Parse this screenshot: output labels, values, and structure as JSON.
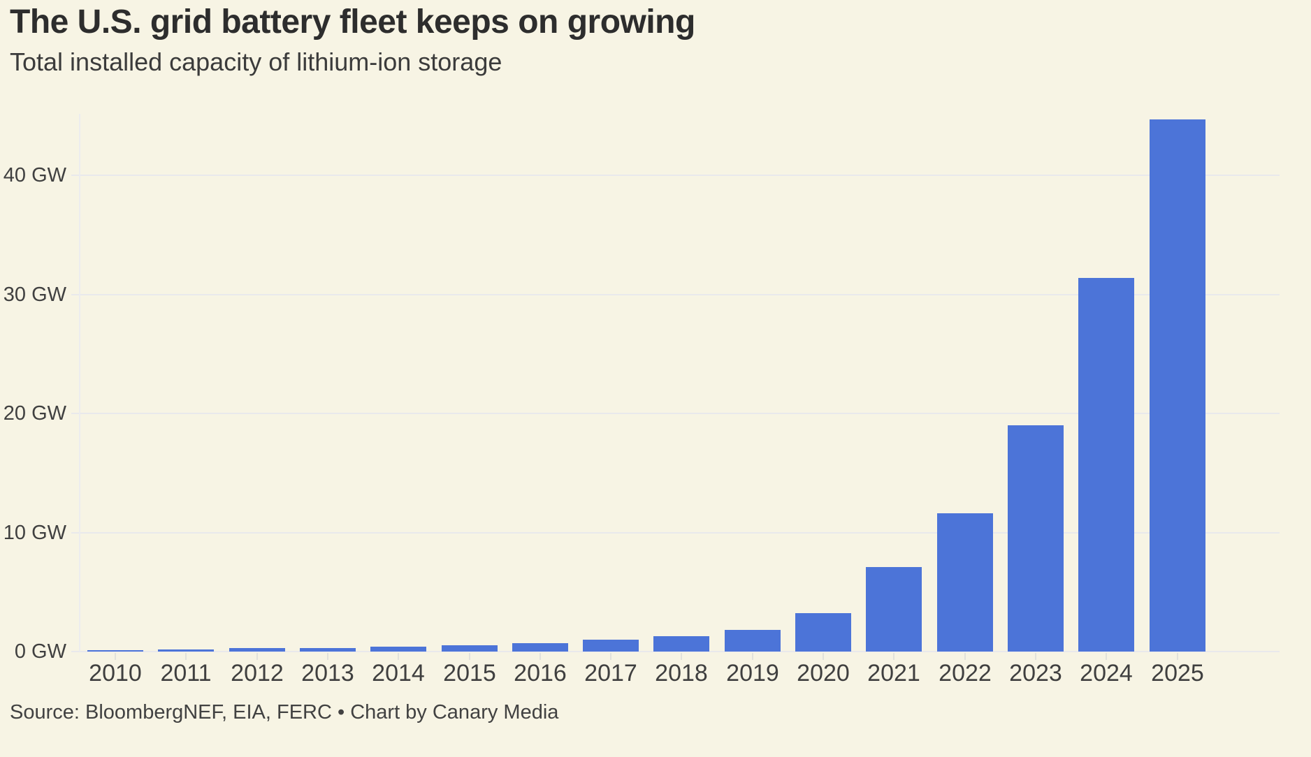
{
  "page": {
    "background": "#f7f4e4"
  },
  "header": {
    "title": "The U.S. grid battery fleet keeps on growing",
    "subtitle": "Total installed capacity of lithium-ion storage"
  },
  "footer": {
    "source": "Source: BloombergNEF, EIA, FERC • Chart by Canary Media"
  },
  "chart_data": {
    "type": "bar",
    "title": "The U.S. grid battery fleet keeps on growing",
    "subtitle": "Total installed capacity of lithium-ion storage",
    "unit": "GW",
    "categories": [
      "2010",
      "2011",
      "2012",
      "2013",
      "2014",
      "2015",
      "2016",
      "2017",
      "2018",
      "2019",
      "2020",
      "2021",
      "2022",
      "2023",
      "2024",
      "2025"
    ],
    "values": [
      0.1,
      0.2,
      0.3,
      0.3,
      0.4,
      0.5,
      0.7,
      1.0,
      1.3,
      1.8,
      3.2,
      7.1,
      11.6,
      19.0,
      31.4,
      44.7
    ],
    "yticks": [
      {
        "value": 0,
        "label": "0 GW"
      },
      {
        "value": 10,
        "label": "10 GW"
      },
      {
        "value": 20,
        "label": "20 GW"
      },
      {
        "value": 30,
        "label": "30 GW"
      },
      {
        "value": 40,
        "label": "40 GW"
      }
    ],
    "ylim": [
      0,
      46.5
    ],
    "grid": true,
    "legend": "none",
    "colors": {
      "bar": "#4c74d8",
      "background": "#f7f4e4",
      "grid": "#e9e9ec",
      "axis_line": "#ececee",
      "tick": "#e2e2dc",
      "label_text": "#404040",
      "title_text": "#2d2d2d"
    },
    "source": "Source: BloombergNEF, EIA, FERC • Chart by Canary Media"
  }
}
